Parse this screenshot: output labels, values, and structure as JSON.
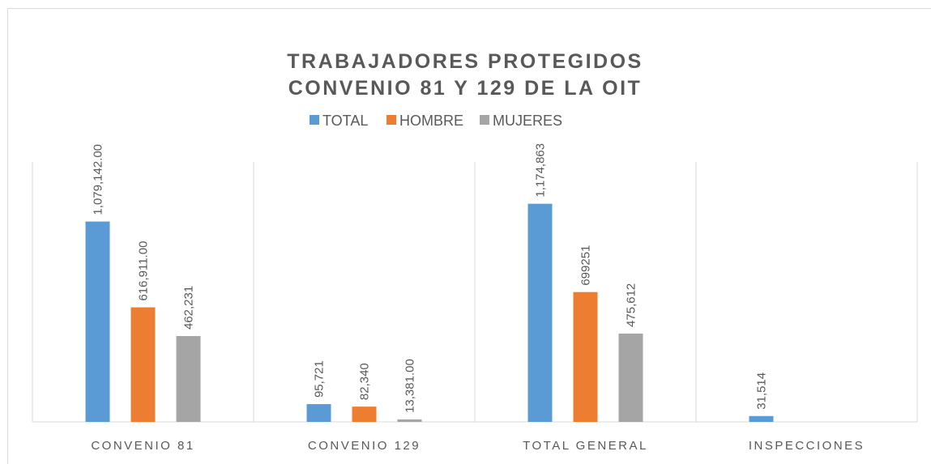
{
  "chart_data": {
    "type": "bar",
    "title": "TRABAJADORES PROTEGIDOS",
    "subtitle": "CONVENIO 81 Y 129 DE LA OIT",
    "categories": [
      "CONVENIO 81",
      "CONVENIO 129",
      "TOTAL GENERAL",
      "INSPECCIONES"
    ],
    "series": [
      {
        "name": "TOTAL",
        "color": "#5b9bd5",
        "values": [
          1079142,
          95721,
          1174863,
          31514
        ],
        "value_labels": [
          "1,079,142.00",
          "95,721",
          "1,174,863",
          "31,514"
        ]
      },
      {
        "name": "HOMBRE",
        "color": "#ed7d31",
        "values": [
          616911,
          82340,
          699251,
          null
        ],
        "value_labels": [
          "616,911.00",
          "82,340",
          "699251",
          null
        ]
      },
      {
        "name": "MUJERES",
        "color": "#a5a5a5",
        "values": [
          462231,
          13381,
          475612,
          null
        ],
        "value_labels": [
          "462,231",
          "13,381.00",
          "475,612",
          null
        ]
      }
    ],
    "ylim": [
      0,
      1400000
    ],
    "legend": "top"
  }
}
